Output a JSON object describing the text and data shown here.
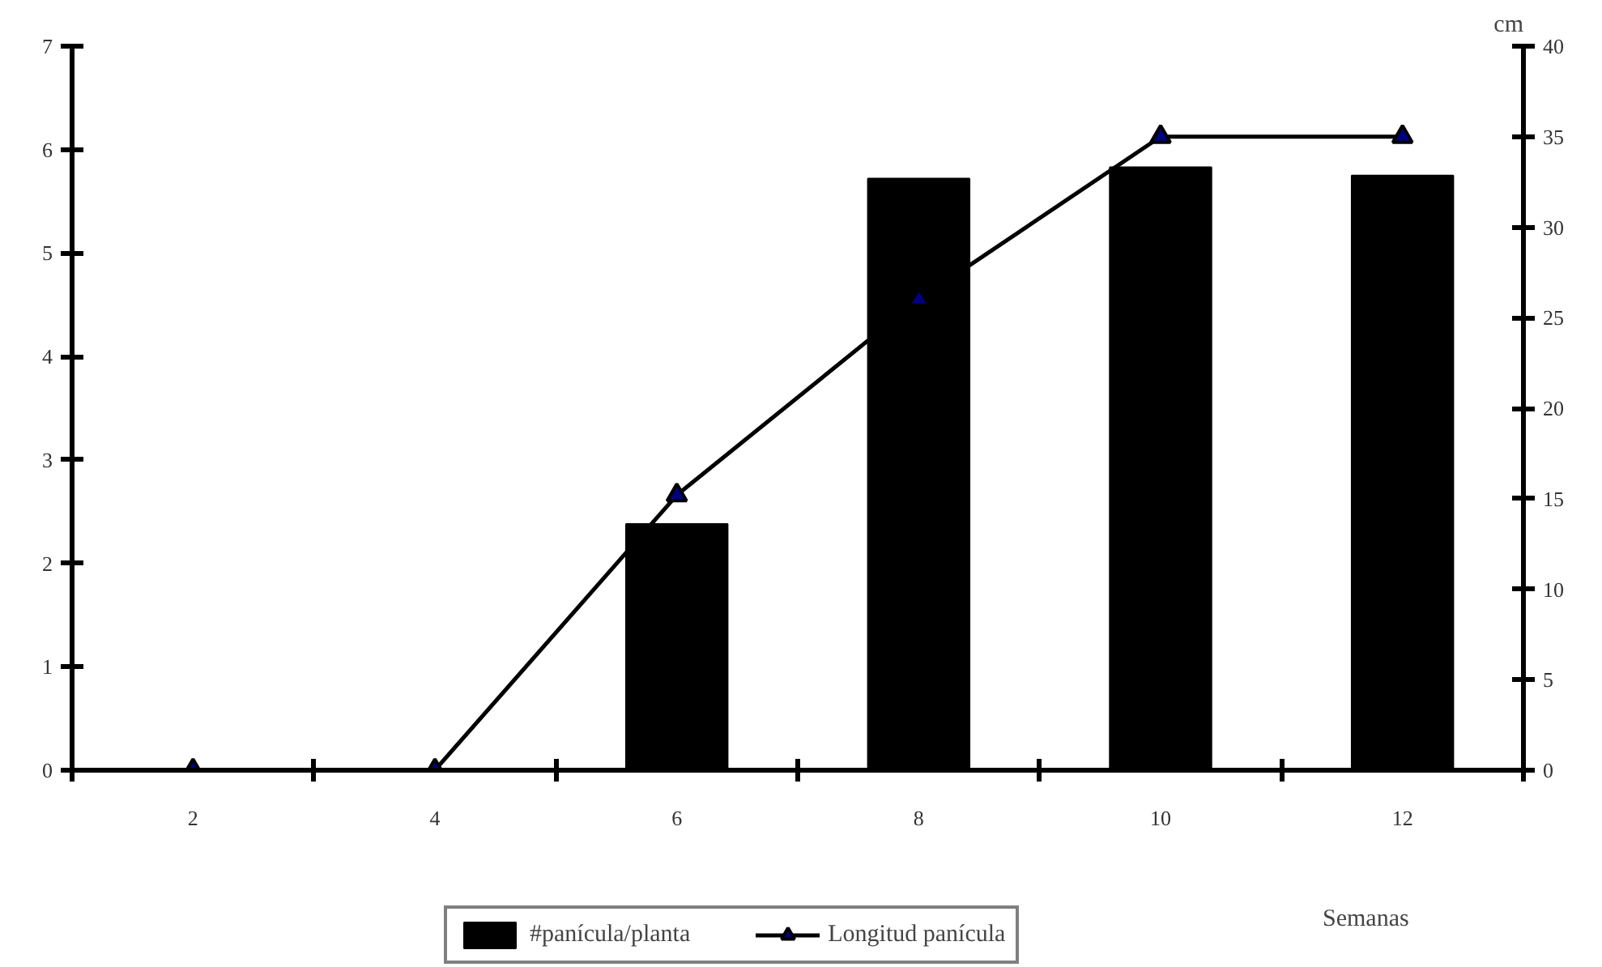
{
  "chart_data": {
    "type": "bar",
    "categories": [
      "2",
      "4",
      "6",
      "8",
      "10",
      "12"
    ],
    "xlabel": "Semanas",
    "y2label": "cm",
    "series": [
      {
        "name": "#panícula/planta",
        "color": "#000000",
        "values": [
          0,
          0,
          2.38,
          5.72,
          5.83,
          5.75
        ]
      },
      {
        "name": "Longitud panícula",
        "type": "line",
        "color": "#000000",
        "axis": "y2",
        "marker": "triangle",
        "values": [
          0,
          0,
          15.2,
          26,
          35,
          35
        ]
      }
    ],
    "ylim": [
      0,
      7
    ],
    "yticks": [
      0,
      1,
      2,
      3,
      4,
      5,
      6,
      7
    ],
    "y2lim": [
      0,
      40
    ],
    "y2ticks": [
      0,
      5,
      10,
      15,
      20,
      25,
      30,
      35,
      40
    ],
    "legend": "bottom",
    "grid": false
  }
}
